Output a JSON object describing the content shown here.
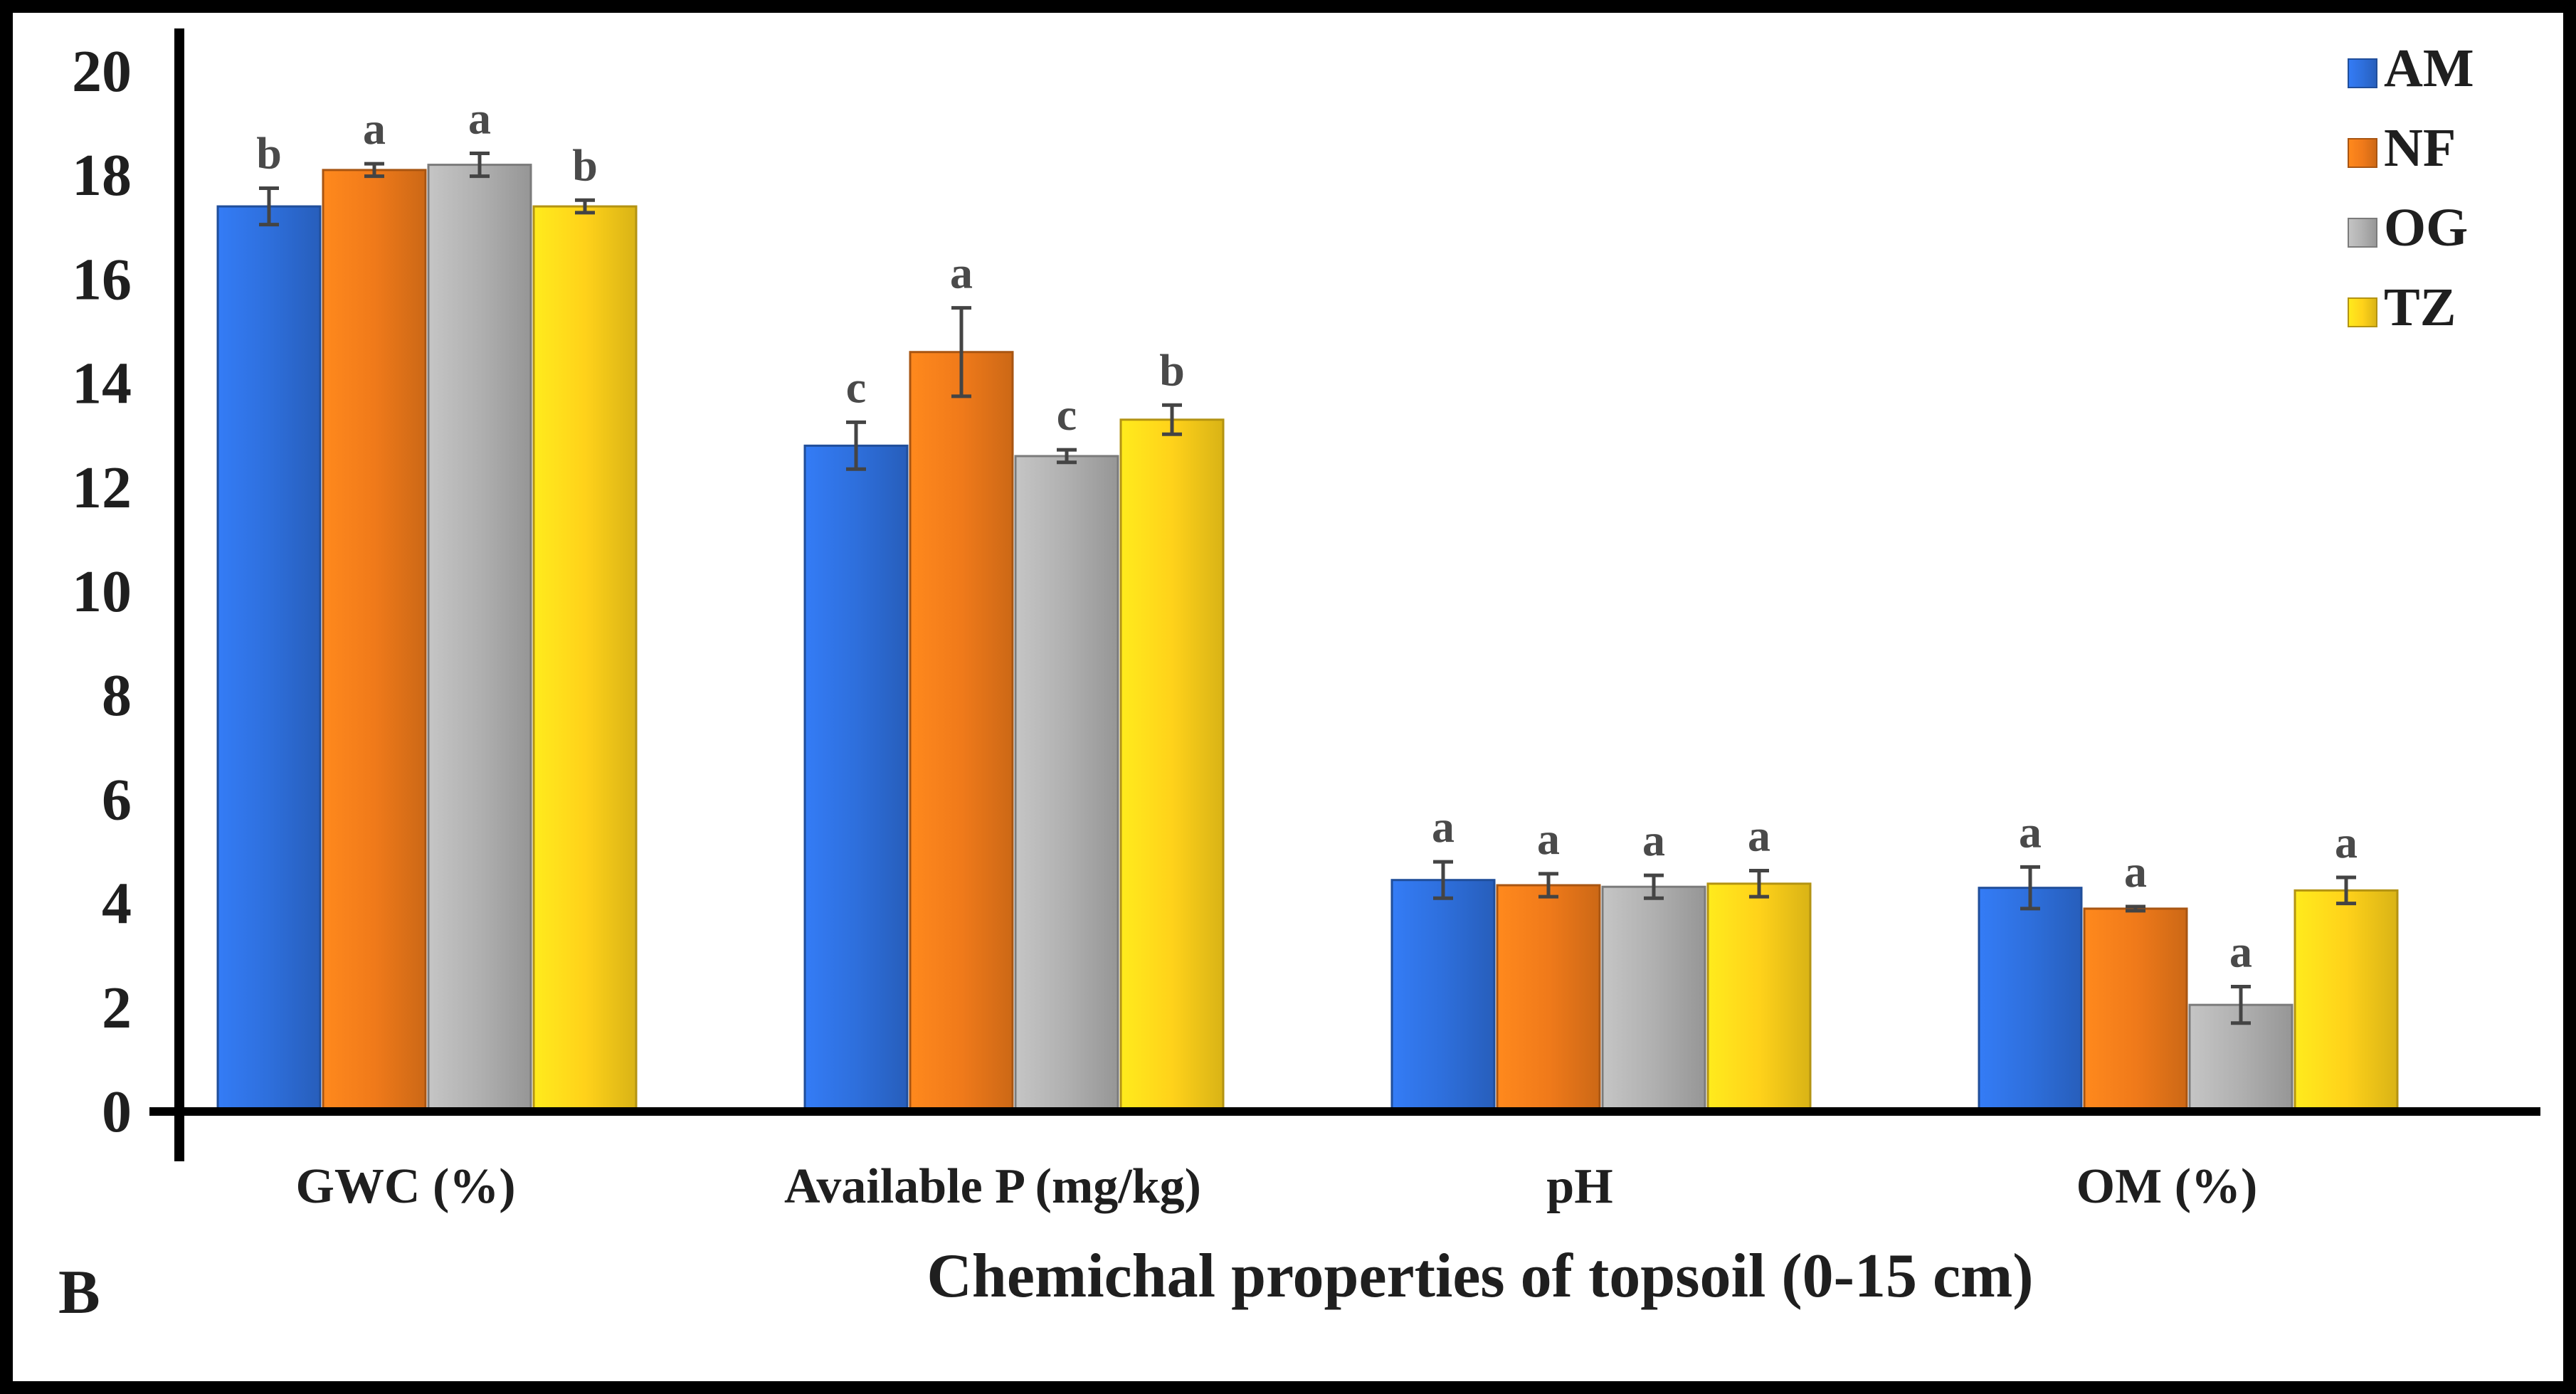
{
  "chart_data": {
    "type": "bar",
    "title": "",
    "panel_label": "B",
    "xlabel": "Chemichal properties of topsoil (0-15 cm)",
    "ylabel": "",
    "ylim": [
      0,
      20
    ],
    "yticks": [
      "0",
      "2",
      "4",
      "6",
      "8",
      "10",
      "12",
      "14",
      "16",
      "18",
      "20"
    ],
    "categories": [
      "GWC (%)",
      "Available P (mg/kg)",
      "pH",
      "OM (%)"
    ],
    "series": [
      {
        "name": "AM",
        "color": "#2e6fdc",
        "values": [
          17.4,
          12.8,
          4.45,
          4.3
        ],
        "errors": [
          0.35,
          0.45,
          0.35,
          0.4
        ],
        "letters": [
          "b",
          "c",
          "a",
          "a"
        ]
      },
      {
        "name": "NF",
        "color": "#f07a1a",
        "values": [
          18.1,
          14.6,
          4.35,
          3.9
        ],
        "errors": [
          0.12,
          0.85,
          0.22,
          0.04
        ],
        "letters": [
          "a",
          "a",
          "a",
          "a"
        ]
      },
      {
        "name": "OG",
        "color": "#b0b0b0",
        "values": [
          18.2,
          12.6,
          4.32,
          2.05
        ],
        "errors": [
          0.22,
          0.12,
          0.22,
          0.35
        ],
        "letters": [
          "a",
          "c",
          "a",
          "a"
        ]
      },
      {
        "name": "TZ",
        "color": "#ffd21a",
        "values": [
          17.4,
          13.3,
          4.38,
          4.25
        ],
        "errors": [
          0.12,
          0.28,
          0.25,
          0.25
        ],
        "letters": [
          "b",
          "b",
          "a",
          "a"
        ]
      }
    ],
    "legend_position": "top-right",
    "grid": false
  }
}
